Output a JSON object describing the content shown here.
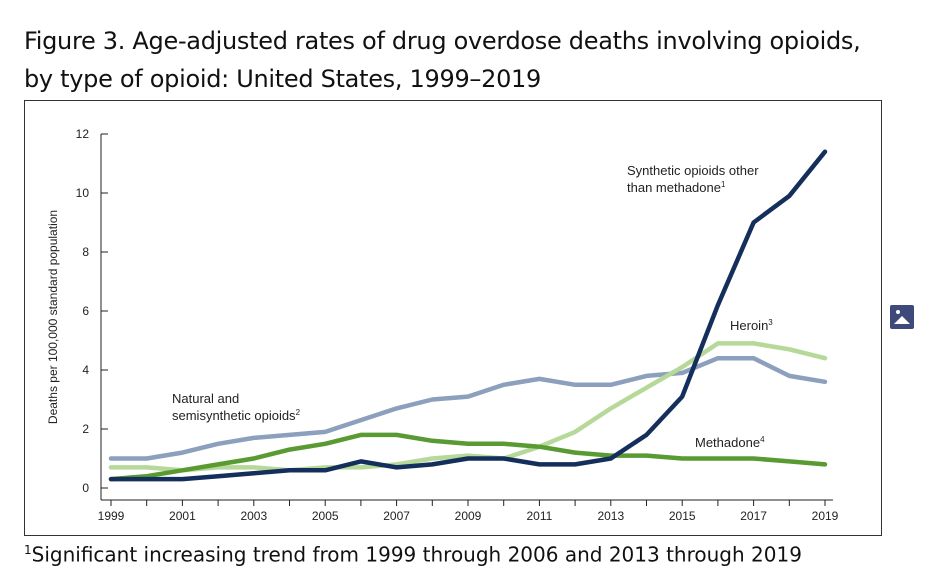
{
  "figure": {
    "title_line1": "Figure 3. Age-adjusted rates of drug overdose deaths involving opioids,",
    "title_line2": "by type of opioid: United States, 1999–2019"
  },
  "footnote": {
    "marker": "1",
    "text": "Significant increasing trend from 1999 through 2006 and 2013 through 2019"
  },
  "chart_data": {
    "type": "line",
    "ylabel": "Deaths per 100,000 standard population",
    "xlabel": "",
    "ylim": [
      0,
      12
    ],
    "yticks": [
      "0",
      "2",
      "4",
      "6",
      "8",
      "10",
      "12"
    ],
    "xticks": [
      "1999",
      "2001",
      "2003",
      "2005",
      "2007",
      "2009",
      "2011",
      "2013",
      "2015",
      "2017",
      "2019"
    ],
    "x": [
      1999,
      2000,
      2001,
      2002,
      2003,
      2004,
      2005,
      2006,
      2007,
      2008,
      2009,
      2010,
      2011,
      2012,
      2013,
      2014,
      2015,
      2016,
      2017,
      2018,
      2019
    ],
    "grid": false,
    "series": [
      {
        "name": "Natural and semisynthetic opioids",
        "sup": "2",
        "label_line1": "Natural and",
        "label_line2": "semisynthetic opioids",
        "color": "#8c9fbd",
        "values": [
          1.0,
          1.0,
          1.2,
          1.5,
          1.7,
          1.8,
          1.9,
          2.3,
          2.7,
          3.0,
          3.1,
          3.5,
          3.7,
          3.5,
          3.5,
          3.8,
          3.9,
          4.4,
          4.4,
          3.8,
          3.6
        ]
      },
      {
        "name": "Heroin",
        "sup": "3",
        "label_line1": "Heroin",
        "label_line2": "",
        "color": "#b6d99a",
        "values": [
          0.7,
          0.7,
          0.6,
          0.7,
          0.7,
          0.6,
          0.7,
          0.7,
          0.8,
          1.0,
          1.1,
          1.0,
          1.4,
          1.9,
          2.7,
          3.4,
          4.1,
          4.9,
          4.9,
          4.7,
          4.4
        ]
      },
      {
        "name": "Methadone",
        "sup": "4",
        "label_line1": "Methadone",
        "label_line2": "",
        "color": "#5a9a32",
        "values": [
          0.3,
          0.4,
          0.6,
          0.8,
          1.0,
          1.3,
          1.5,
          1.8,
          1.8,
          1.6,
          1.5,
          1.5,
          1.4,
          1.2,
          1.1,
          1.1,
          1.0,
          1.0,
          1.0,
          0.9,
          0.8
        ]
      },
      {
        "name": "Synthetic opioids other than methadone",
        "sup": "1",
        "label_line1": "Synthetic opioids other",
        "label_line2": "than methadone",
        "color": "#142f5c",
        "values": [
          0.3,
          0.3,
          0.3,
          0.4,
          0.5,
          0.6,
          0.6,
          0.9,
          0.7,
          0.8,
          1.0,
          1.0,
          0.8,
          0.8,
          1.0,
          1.8,
          3.1,
          6.2,
          9.0,
          9.9,
          11.4
        ]
      }
    ]
  }
}
